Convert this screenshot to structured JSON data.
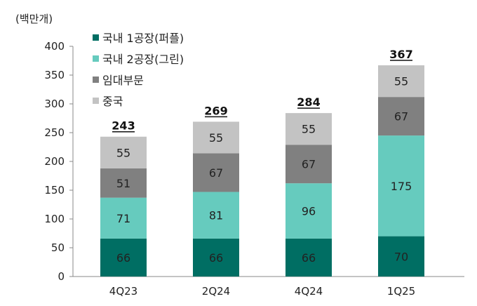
{
  "unit": "(백만개)",
  "chart_data": {
    "type": "bar",
    "stacked": true,
    "categories": [
      "4Q23",
      "2Q24",
      "4Q24",
      "1Q25"
    ],
    "series": [
      {
        "name": "국내 1공장(퍼플)",
        "color": "#006e63",
        "values": [
          66,
          66,
          66,
          70
        ]
      },
      {
        "name": "국내 2공장(그린)",
        "color": "#66cbbe",
        "values": [
          71,
          81,
          96,
          175
        ]
      },
      {
        "name": "임대부문",
        "color": "#808080",
        "values": [
          51,
          67,
          67,
          67
        ]
      },
      {
        "name": "중국",
        "color": "#c3c3c3",
        "values": [
          55,
          55,
          55,
          55
        ]
      }
    ],
    "totals": [
      243,
      269,
      284,
      367
    ],
    "ylim": [
      0,
      400
    ],
    "yticks": [
      0,
      50,
      100,
      150,
      200,
      250,
      300,
      350,
      400
    ],
    "legend_position": "top-left",
    "grid": false
  }
}
